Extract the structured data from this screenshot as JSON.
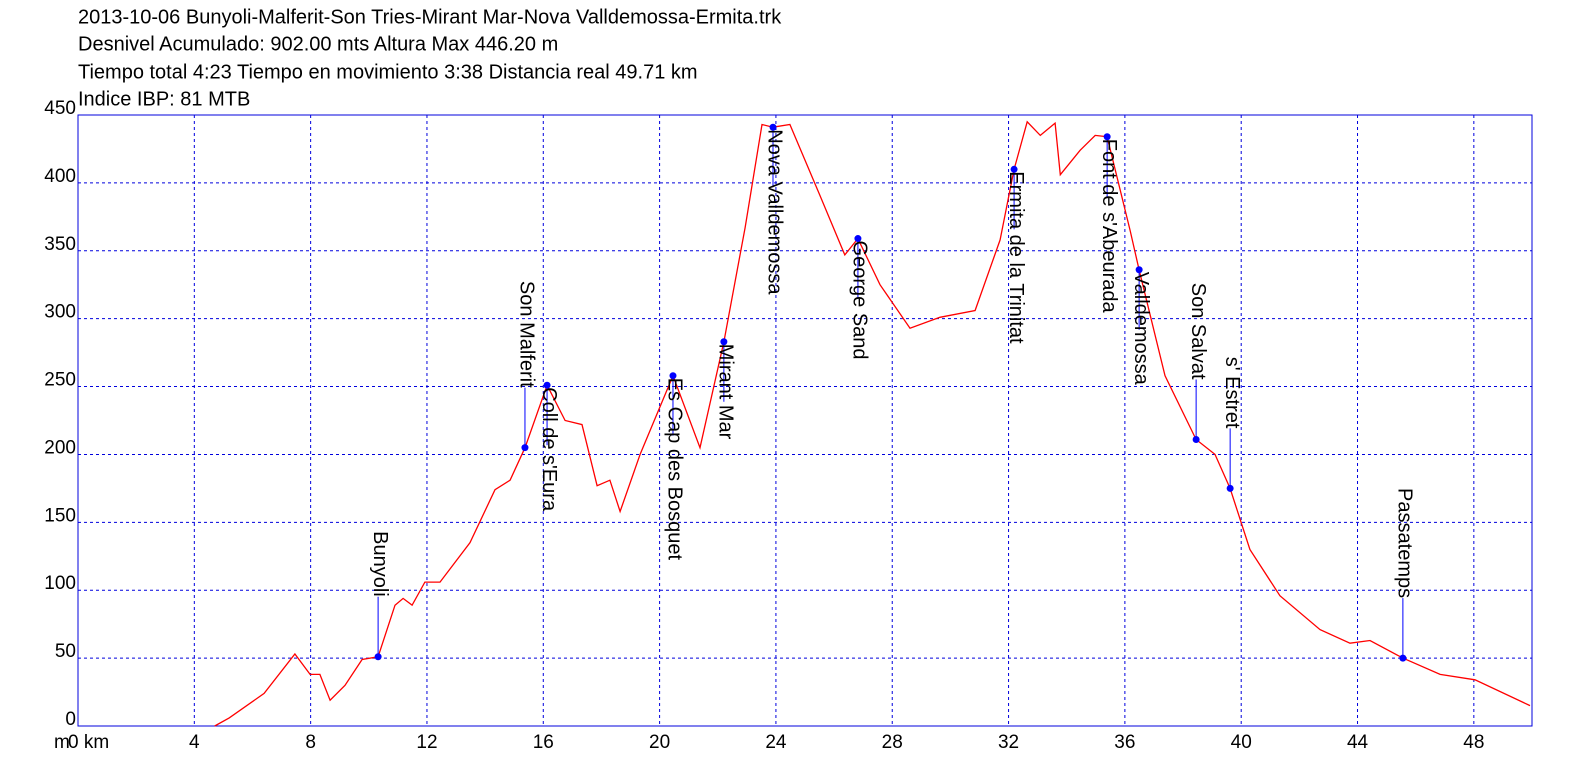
{
  "chart_data": {
    "type": "line",
    "title": "2013-10-06 Bunyoli-Malferit-Son Tries-Mirant Mar-Nova Valldemossa-Ermita.trk",
    "subtitle": [
      "Desnivel Acumulado: 902.00 mts  Altura Max 446.20 m",
      "Tiempo total 4:23 Tiempo en movimiento 3:38 Distancia real 49.71 km",
      "Indice IBP: 81 MTB"
    ],
    "y_label": "m",
    "xlim": [
      0,
      50
    ],
    "xticks": [
      {
        "value": 0,
        "label": "0 km"
      },
      4,
      8,
      12,
      16,
      20,
      24,
      28,
      32,
      36,
      40,
      44,
      48
    ],
    "ylim": [
      0,
      450
    ],
    "yticks": [
      0,
      50,
      100,
      150,
      200,
      250,
      300,
      350,
      400,
      450
    ],
    "grid": true,
    "grid_color": "#0000dd",
    "frame_color": "#0000dd",
    "line_color": "#ff0000",
    "point_color": "#0000ff",
    "x": [
      4.7,
      5.2,
      6.4,
      7.46,
      7.98,
      8.32,
      8.67,
      9.18,
      9.77,
      10.32,
      10.9,
      11.18,
      11.49,
      11.93,
      12.45,
      13.48,
      14.34,
      14.86,
      15.37,
      16.13,
      16.75,
      17.33,
      17.85,
      18.29,
      18.64,
      19.33,
      20.46,
      21.39,
      22.21,
      22.94,
      23.52,
      23.9,
      24.48,
      25.51,
      26.37,
      26.82,
      27.58,
      28.61,
      29.64,
      30.85,
      31.71,
      32.19,
      32.64,
      33.09,
      33.6,
      33.78,
      34.46,
      34.98,
      35.39,
      36.18,
      36.49,
      37.38,
      38.45,
      39.1,
      39.62,
      40.3,
      41.33,
      42.71,
      43.74,
      44.43,
      45.56,
      46.84,
      48.04,
      49.93
    ],
    "values": [
      0,
      6,
      24,
      53,
      38,
      38,
      19,
      30,
      49,
      51,
      89,
      94,
      89,
      106,
      106,
      135,
      174,
      181,
      205,
      251,
      225,
      222,
      177,
      181,
      158,
      200,
      258,
      205,
      283,
      367,
      443,
      441,
      443,
      391,
      347,
      359,
      325,
      293,
      301,
      306,
      358,
      410,
      445,
      435,
      444,
      406,
      424,
      435,
      434,
      365,
      336,
      258,
      211,
      200,
      175,
      130,
      96,
      71,
      61,
      63,
      50,
      38,
      34,
      15
    ],
    "annotations": [
      {
        "label": "Bunyoli",
        "x": 10.32,
        "y": 51,
        "position": "above"
      },
      {
        "label": "Son Malferit",
        "x": 15.37,
        "y": 205,
        "position": "above"
      },
      {
        "label": "Coll de s'Eura",
        "x": 16.13,
        "y": 251,
        "position": "below"
      },
      {
        "label": "Es Cap des Bosquet",
        "x": 20.46,
        "y": 258,
        "position": "below"
      },
      {
        "label": "Mirant Mar",
        "x": 22.21,
        "y": 283,
        "position": "below"
      },
      {
        "label": "Nova Valldemossa",
        "x": 23.9,
        "y": 441,
        "position": "below"
      },
      {
        "label": "George Sand",
        "x": 26.82,
        "y": 359,
        "position": "below"
      },
      {
        "label": "Ermita de la Trinitat",
        "x": 32.19,
        "y": 410,
        "position": "below"
      },
      {
        "label": "Font de s'Abeurada",
        "x": 35.39,
        "y": 434,
        "position": "below"
      },
      {
        "label": "Valldemossa",
        "x": 36.49,
        "y": 336,
        "position": "below"
      },
      {
        "label": "Son Salvat",
        "x": 38.45,
        "y": 211,
        "position": "above"
      },
      {
        "label": "s' Estret",
        "x": 39.62,
        "y": 175,
        "position": "above"
      },
      {
        "label": "Passatemps",
        "x": 45.56,
        "y": 50,
        "position": "above"
      }
    ]
  }
}
